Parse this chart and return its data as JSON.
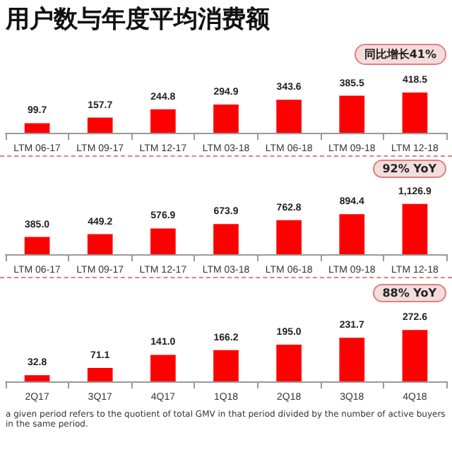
{
  "chart_data": [
    {
      "type": "bar",
      "title": "用户数与年度平均消费额",
      "categories": [
        "LTM 06-17",
        "LTM 09-17",
        "LTM 12-17",
        "LTM 03-18",
        "LTM 06-18",
        "LTM 09-18",
        "LTM 12-18"
      ],
      "values": [
        99.7,
        157.7,
        244.8,
        294.9,
        343.6,
        385.5,
        418.5
      ],
      "color": "#ff0000",
      "value_labels": [
        "99.7",
        "157.7",
        "244.8",
        "294.9",
        "343.6",
        "385.5",
        "418.5"
      ],
      "annotations": [
        "同比增长41%"
      ]
    },
    {
      "type": "bar",
      "categories": [
        "LTM 06-17",
        "LTM 09-17",
        "LTM 12-17",
        "LTM 03-18",
        "LTM 06-18",
        "LTM 09-18",
        "LTM 12-18"
      ],
      "values": [
        385.0,
        449.2,
        576.9,
        673.9,
        762.8,
        894.4,
        1126.9
      ],
      "color": "#ff0000",
      "value_labels": [
        "385.0",
        "449.2",
        "576.9",
        "673.9",
        "762.8",
        "894.4",
        "1,126.9"
      ],
      "annotations": [
        "92% YoY"
      ]
    },
    {
      "type": "bar",
      "categories": [
        "2Q17",
        "3Q17",
        "4Q17",
        "1Q18",
        "2Q18",
        "3Q18",
        "4Q18"
      ],
      "values": [
        32.8,
        71.1,
        141.0,
        166.2,
        195.0,
        231.7,
        272.6
      ],
      "color": "#ff0000",
      "value_labels": [
        "32.8",
        "71.1",
        "141.0",
        "166.2",
        "195.0",
        "231.7",
        "272.6"
      ],
      "annotations": [
        "88% YoY",
        "a given period refers to the quotient of total GMV in that period divided by the number of active buyers in the same period."
      ]
    }
  ]
}
